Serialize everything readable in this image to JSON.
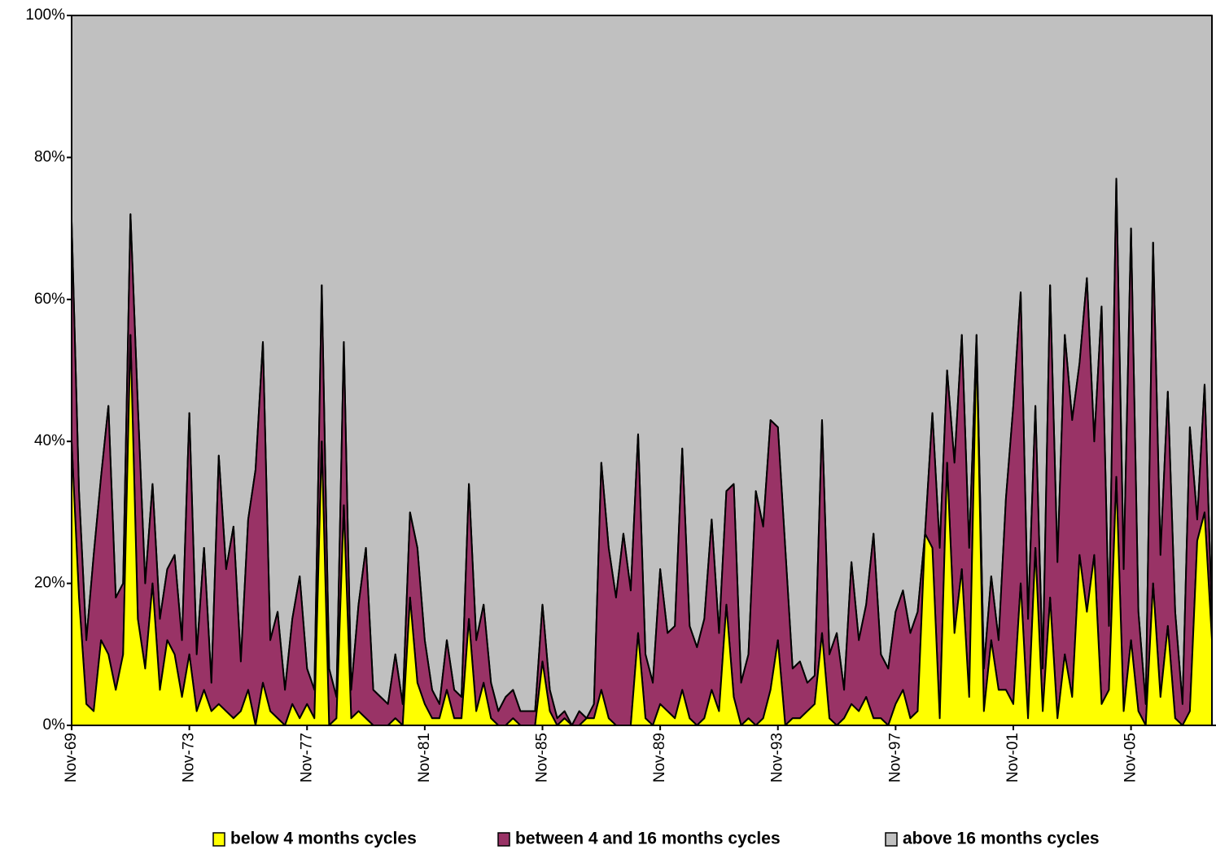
{
  "chart_data": {
    "type": "stacked_area",
    "categories": [
      "Nov-69",
      null,
      null,
      null,
      null,
      null,
      null,
      null,
      null,
      null,
      null,
      null,
      null,
      null,
      null,
      null,
      "Nov-73",
      null,
      null,
      null,
      null,
      null,
      null,
      null,
      null,
      null,
      null,
      null,
      null,
      null,
      null,
      null,
      "Nov-77",
      null,
      null,
      null,
      null,
      null,
      null,
      null,
      null,
      null,
      null,
      null,
      null,
      null,
      null,
      null,
      "Nov-81",
      null,
      null,
      null,
      null,
      null,
      null,
      null,
      null,
      null,
      null,
      null,
      null,
      null,
      null,
      null,
      "Nov-85",
      null,
      null,
      null,
      null,
      null,
      null,
      null,
      null,
      null,
      null,
      null,
      null,
      null,
      null,
      null,
      "Nov-89",
      null,
      null,
      null,
      null,
      null,
      null,
      null,
      null,
      null,
      null,
      null,
      null,
      null,
      null,
      null,
      "Nov-93",
      null,
      null,
      null,
      null,
      null,
      null,
      null,
      null,
      null,
      null,
      null,
      null,
      null,
      null,
      null,
      "Nov-97",
      null,
      null,
      null,
      null,
      null,
      null,
      null,
      null,
      null,
      null,
      null,
      null,
      null,
      null,
      null,
      "Nov-01",
      null,
      null,
      null,
      null,
      null,
      null,
      null,
      null,
      null,
      null,
      null,
      null,
      null,
      null,
      null,
      "Nov-05",
      null,
      null,
      null,
      null,
      null,
      null,
      null,
      null,
      null,
      null,
      null
    ],
    "series": [
      {
        "name": "below 4 months cycles",
        "color": "#ffff00",
        "values": [
          40,
          18,
          3,
          2,
          12,
          10,
          5,
          10,
          55,
          15,
          8,
          20,
          5,
          12,
          10,
          4,
          10,
          2,
          5,
          2,
          3,
          2,
          1,
          2,
          5,
          0,
          6,
          2,
          1,
          0,
          3,
          1,
          3,
          1,
          40,
          0,
          1,
          31,
          1,
          2,
          1,
          0,
          0,
          0,
          1,
          0,
          18,
          6,
          3,
          1,
          1,
          5,
          1,
          1,
          15,
          2,
          6,
          1,
          0,
          0,
          1,
          0,
          0,
          0,
          9,
          2,
          0,
          1,
          0,
          0,
          1,
          1,
          5,
          1,
          0,
          0,
          0,
          13,
          1,
          0,
          3,
          2,
          1,
          5,
          1,
          0,
          1,
          5,
          2,
          17,
          4,
          0,
          1,
          0,
          1,
          5,
          12,
          0,
          1,
          1,
          2,
          3,
          13,
          1,
          0,
          1,
          3,
          2,
          4,
          1,
          1,
          0,
          3,
          5,
          1,
          2,
          27,
          25,
          1,
          37,
          13,
          22,
          4,
          54,
          2,
          12,
          5,
          5,
          3,
          20,
          1,
          25,
          2,
          18,
          1,
          10,
          4,
          24,
          16,
          24,
          3,
          5,
          35,
          2,
          12,
          2,
          0,
          20,
          4,
          14,
          1,
          0,
          2,
          26,
          30,
          12
        ]
      },
      {
        "name": "between 4 and 16 months cycles",
        "color": "#993366",
        "values": [
          31,
          15,
          9,
          22,
          23,
          35,
          13,
          10,
          17,
          30,
          12,
          14,
          10,
          10,
          14,
          8,
          34,
          8,
          20,
          4,
          35,
          20,
          27,
          7,
          24,
          36,
          48,
          10,
          15,
          5,
          12,
          20,
          5,
          4,
          22,
          8,
          3,
          23,
          4,
          15,
          24,
          5,
          4,
          3,
          9,
          3,
          12,
          19,
          9,
          4,
          2,
          7,
          4,
          3,
          19,
          10,
          11,
          5,
          2,
          4,
          4,
          2,
          2,
          2,
          8,
          3,
          1,
          1,
          0,
          2,
          0,
          2,
          32,
          24,
          18,
          27,
          19,
          28,
          9,
          6,
          19,
          11,
          13,
          34,
          13,
          11,
          14,
          24,
          11,
          16,
          30,
          6,
          9,
          33,
          27,
          38,
          30,
          25,
          7,
          8,
          4,
          4,
          30,
          9,
          13,
          4,
          20,
          10,
          13,
          26,
          9,
          8,
          13,
          14,
          12,
          14,
          0,
          19,
          24,
          13,
          24,
          33,
          21,
          1,
          6,
          9,
          7,
          27,
          42,
          41,
          14,
          20,
          6,
          44,
          22,
          45,
          39,
          27,
          47,
          16,
          56,
          9,
          42,
          20,
          58,
          14,
          3,
          48,
          20,
          33,
          15,
          3,
          40,
          3,
          18,
          3
        ]
      },
      {
        "name": "above 16 months cycles",
        "color": "#c0c0c0",
        "values": [
          29,
          67,
          88,
          76,
          65,
          55,
          82,
          80,
          28,
          55,
          80,
          66,
          85,
          78,
          76,
          88,
          56,
          90,
          75,
          94,
          62,
          78,
          72,
          91,
          71,
          64,
          46,
          88,
          84,
          95,
          85,
          79,
          92,
          95,
          38,
          92,
          96,
          46,
          95,
          83,
          75,
          95,
          96,
          97,
          90,
          97,
          70,
          75,
          88,
          95,
          97,
          88,
          95,
          96,
          66,
          88,
          83,
          94,
          98,
          96,
          95,
          98,
          98,
          98,
          83,
          95,
          99,
          98,
          100,
          98,
          99,
          97,
          63,
          75,
          82,
          73,
          81,
          59,
          90,
          94,
          78,
          87,
          86,
          61,
          86,
          89,
          85,
          71,
          87,
          67,
          66,
          94,
          90,
          67,
          72,
          57,
          58,
          75,
          92,
          91,
          94,
          93,
          57,
          90,
          87,
          95,
          77,
          88,
          83,
          73,
          90,
          92,
          84,
          81,
          87,
          84,
          73,
          56,
          75,
          50,
          63,
          45,
          75,
          45,
          92,
          79,
          88,
          68,
          55,
          39,
          85,
          55,
          92,
          38,
          77,
          45,
          57,
          49,
          37,
          60,
          41,
          86,
          23,
          78,
          30,
          84,
          97,
          32,
          76,
          53,
          84,
          97,
          58,
          71,
          52,
          85
        ]
      }
    ],
    "ylim": [
      0,
      100
    ],
    "yticks": [
      {
        "value": 0,
        "label": "0%"
      },
      {
        "value": 20,
        "label": "20%"
      },
      {
        "value": 40,
        "label": "40%"
      },
      {
        "value": 60,
        "label": "60%"
      },
      {
        "value": 80,
        "label": "80%"
      },
      {
        "value": 100,
        "label": "100%"
      }
    ],
    "legend": "bottom"
  }
}
